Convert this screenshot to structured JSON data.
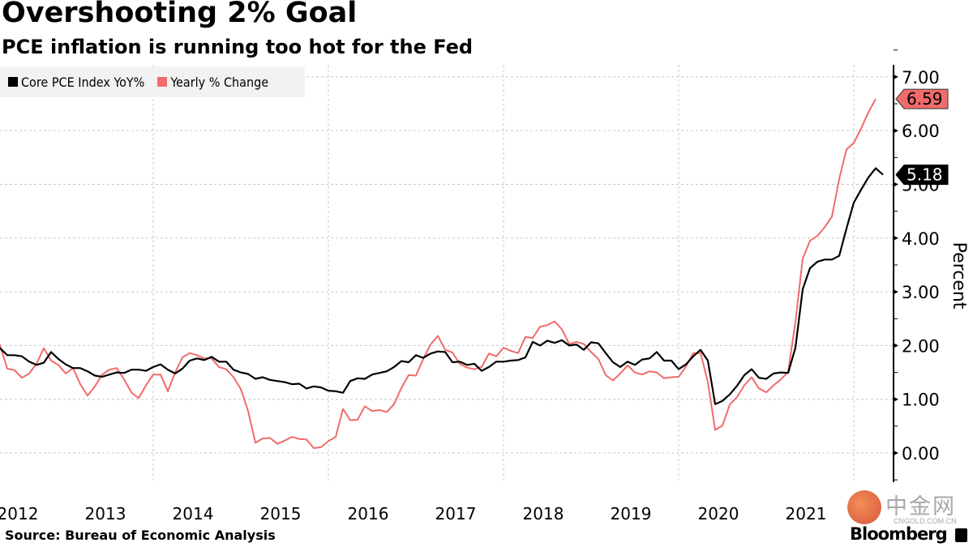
{
  "header": {
    "title": "Overshooting 2% Goal",
    "subtitle": "PCE inflation is running too hot for the Fed"
  },
  "footer": {
    "source": "Source: Bureau of Economic Analysis",
    "brand": "Bloomberg",
    "watermark_cn": "中金网",
    "watermark_en": "CNGOLD.COM.CN"
  },
  "colors": {
    "core": "#000000",
    "headline": "#f06b6b",
    "grid": "#c8c8c8",
    "legend_bg": "#f2f2f2"
  },
  "chart_data": {
    "type": "line",
    "title": "Overshooting 2% Goal",
    "subtitle": "PCE inflation is running too hot for the Fed",
    "xlabel": "",
    "ylabel": "Percent",
    "ylim": [
      -0.5,
      7.2
    ],
    "yticks": [
      0,
      1,
      2,
      3,
      4,
      5,
      6,
      7
    ],
    "ytick_labels": [
      "0.00",
      "1.00",
      "2.00",
      "3.00",
      "4.00",
      "5.00",
      "6.00",
      "7.00"
    ],
    "xtick_labels": [
      "2012",
      "2013",
      "2014",
      "2015",
      "2016",
      "2017",
      "2018",
      "2019",
      "2020",
      "2021"
    ],
    "x_start": "2012-03",
    "x_end": "2022-03",
    "frequency": "monthly",
    "grid": true,
    "legend_position": "top-left",
    "y_axis_side": "right",
    "series": [
      {
        "name": "Core PCE Index YoY%",
        "color": "#000000",
        "last_value_label": "5.18",
        "values": [
          2.05,
          1.95,
          1.82,
          1.82,
          1.8,
          1.7,
          1.64,
          1.68,
          1.88,
          1.75,
          1.65,
          1.58,
          1.58,
          1.52,
          1.44,
          1.42,
          1.46,
          1.5,
          1.49,
          1.55,
          1.55,
          1.53,
          1.6,
          1.65,
          1.55,
          1.48,
          1.57,
          1.72,
          1.76,
          1.73,
          1.79,
          1.7,
          1.7,
          1.55,
          1.5,
          1.47,
          1.38,
          1.41,
          1.36,
          1.34,
          1.32,
          1.28,
          1.29,
          1.2,
          1.24,
          1.22,
          1.16,
          1.15,
          1.12,
          1.34,
          1.39,
          1.38,
          1.46,
          1.49,
          1.52,
          1.6,
          1.71,
          1.69,
          1.82,
          1.77,
          1.85,
          1.89,
          1.88,
          1.69,
          1.7,
          1.64,
          1.66,
          1.53,
          1.6,
          1.7,
          1.7,
          1.72,
          1.73,
          1.78,
          2.07,
          2.0,
          2.09,
          2.05,
          2.1,
          2.0,
          2.02,
          1.92,
          2.06,
          2.04,
          1.86,
          1.69,
          1.6,
          1.7,
          1.64,
          1.74,
          1.76,
          1.88,
          1.72,
          1.72,
          1.56,
          1.65,
          1.8,
          1.92,
          1.72,
          0.91,
          0.97,
          1.09,
          1.25,
          1.45,
          1.56,
          1.4,
          1.38,
          1.48,
          1.5,
          1.49,
          1.96,
          3.05,
          3.44,
          3.56,
          3.6,
          3.6,
          3.67,
          4.18,
          4.66,
          4.9,
          5.13,
          5.3,
          5.18
        ]
      },
      {
        "name": "Yearly % Change",
        "color": "#f06b6b",
        "last_value_label": "6.59",
        "values": [
          2.3,
          2.0,
          1.57,
          1.54,
          1.4,
          1.48,
          1.66,
          1.95,
          1.72,
          1.64,
          1.48,
          1.58,
          1.28,
          1.07,
          1.24,
          1.46,
          1.55,
          1.58,
          1.37,
          1.13,
          1.02,
          1.26,
          1.46,
          1.46,
          1.15,
          1.5,
          1.78,
          1.86,
          1.82,
          1.76,
          1.76,
          1.6,
          1.56,
          1.41,
          1.19,
          0.78,
          0.19,
          0.27,
          0.28,
          0.17,
          0.23,
          0.3,
          0.26,
          0.25,
          0.09,
          0.11,
          0.22,
          0.3,
          0.82,
          0.61,
          0.62,
          0.87,
          0.78,
          0.8,
          0.76,
          0.91,
          1.21,
          1.45,
          1.44,
          1.75,
          2.02,
          2.18,
          1.92,
          1.87,
          1.66,
          1.59,
          1.56,
          1.6,
          1.85,
          1.8,
          1.96,
          1.9,
          1.86,
          2.16,
          2.14,
          2.35,
          2.38,
          2.45,
          2.3,
          2.03,
          2.07,
          2.03,
          1.88,
          1.75,
          1.45,
          1.35,
          1.48,
          1.63,
          1.5,
          1.46,
          1.52,
          1.5,
          1.39,
          1.41,
          1.42,
          1.61,
          1.86,
          1.86,
          1.32,
          0.43,
          0.51,
          0.9,
          1.04,
          1.26,
          1.41,
          1.2,
          1.13,
          1.26,
          1.37,
          1.51,
          2.44,
          3.62,
          3.95,
          4.04,
          4.2,
          4.4,
          5.1,
          5.65,
          5.77,
          6.04,
          6.34,
          6.59
        ]
      }
    ],
    "end_labels": [
      "6.59",
      "5.18"
    ]
  }
}
